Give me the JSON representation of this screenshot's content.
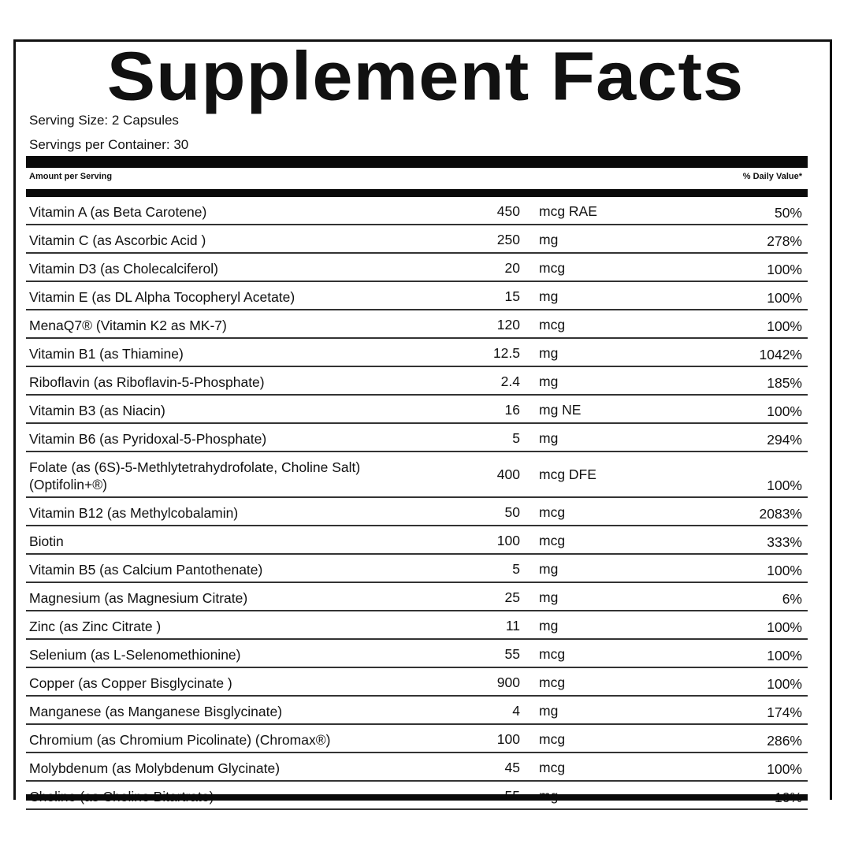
{
  "title": "Supplement Facts",
  "serving_size": "Serving Size: 2 Capsules",
  "servings_per_container": "Servings per Container: 30",
  "header": {
    "amount": "Amount per Serving",
    "dv": "% Daily Value*"
  },
  "rows": [
    {
      "name": "Vitamin A (as Beta Carotene)",
      "amount": "450",
      "unit": "mcg RAE",
      "dv": "50%"
    },
    {
      "name": "Vitamin C (as Ascorbic Acid )",
      "amount": "250",
      "unit": "mg",
      "dv": "278%"
    },
    {
      "name": "Vitamin D3 (as Cholecalciferol)",
      "amount": "20",
      "unit": "mcg",
      "dv": "100%"
    },
    {
      "name": "Vitamin E (as DL Alpha Tocopheryl Acetate)",
      "amount": "15",
      "unit": "mg",
      "dv": "100%"
    },
    {
      "name": "MenaQ7® (Vitamin K2 as MK-7)",
      "amount": "120",
      "unit": "mcg",
      "dv": "100%"
    },
    {
      "name": "Vitamin B1 (as Thiamine)",
      "amount": "12.5",
      "unit": "mg",
      "dv": "1042%"
    },
    {
      "name": "Riboflavin (as Riboflavin-5-Phosphate)",
      "amount": "2.4",
      "unit": "mg",
      "dv": "185%"
    },
    {
      "name": "Vitamin B3 (as Niacin)",
      "amount": "16",
      "unit": "mg NE",
      "dv": "100%"
    },
    {
      "name": "Vitamin B6 (as Pyridoxal-5-Phosphate)",
      "amount": "5",
      "unit": "mg",
      "dv": "294%"
    },
    {
      "name": "Folate (as (6S)-5-Methlytetrahydrofolate, Choline Salt) (Optifolin+®)",
      "amount": "400",
      "unit": "mcg DFE",
      "dv": "100%"
    },
    {
      "name": "Vitamin B12 (as Methylcobalamin)",
      "amount": "50",
      "unit": "mcg",
      "dv": "2083%"
    },
    {
      "name": "Biotin",
      "amount": "100",
      "unit": "mcg",
      "dv": "333%"
    },
    {
      "name": "Vitamin B5 (as Calcium Pantothenate)",
      "amount": "5",
      "unit": "mg",
      "dv": "100%"
    },
    {
      "name": "Magnesium (as Magnesium Citrate)",
      "amount": "25",
      "unit": "mg",
      "dv": "6%"
    },
    {
      "name": "Zinc (as Zinc Citrate )",
      "amount": "11",
      "unit": "mg",
      "dv": "100%"
    },
    {
      "name": "Selenium (as L-Selenomethionine)",
      "amount": "55",
      "unit": "mcg",
      "dv": "100%"
    },
    {
      "name": "Copper (as Copper Bisglycinate )",
      "amount": "900",
      "unit": "mcg",
      "dv": "100%"
    },
    {
      "name": "Manganese (as Manganese Bisglycinate)",
      "amount": "4",
      "unit": "mg",
      "dv": "174%"
    },
    {
      "name": "Chromium (as Chromium Picolinate) (Chromax®)",
      "amount": "100",
      "unit": "mcg",
      "dv": "286%"
    },
    {
      "name": "Molybdenum (as Molybdenum Glycinate)",
      "amount": "45",
      "unit": "mcg",
      "dv": "100%"
    },
    {
      "name": "Choline (as Choline Bitartrate)",
      "amount": "55",
      "unit": "mg",
      "dv": "10%"
    }
  ]
}
